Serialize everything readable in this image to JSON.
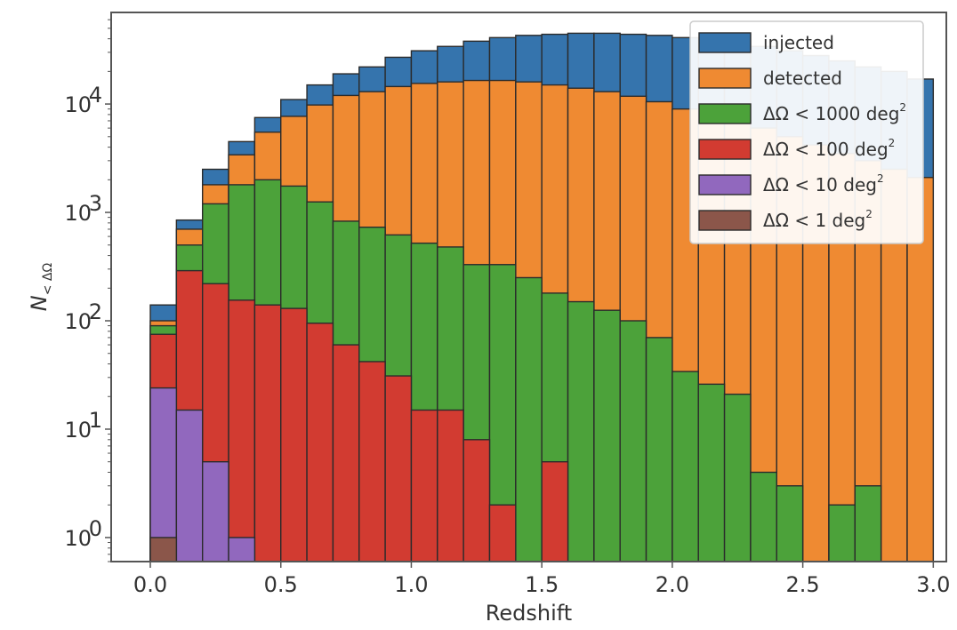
{
  "chart_data": {
    "type": "bar",
    "xlabel": "Redshift",
    "ylabel": "N",
    "ylabel_sub": "< ΔΩ",
    "y_scale": "log",
    "xlim": [
      -0.15,
      3.05
    ],
    "ylim": [
      0.6,
      70000
    ],
    "x_ticks": [
      0.0,
      0.5,
      1.0,
      1.5,
      2.0,
      2.5,
      3.0
    ],
    "x_tick_labels": [
      "0.0",
      "0.5",
      "1.0",
      "1.5",
      "2.0",
      "2.5",
      "3.0"
    ],
    "y_ticks": [
      1,
      10,
      100,
      1000,
      10000
    ],
    "y_tick_labels": [
      {
        "base": "10",
        "exp": "0"
      },
      {
        "base": "10",
        "exp": "1"
      },
      {
        "base": "10",
        "exp": "2"
      },
      {
        "base": "10",
        "exp": "3"
      },
      {
        "base": "10",
        "exp": "4"
      }
    ],
    "grid": false,
    "legend_position": "top-right",
    "bin_edges": [
      0.0,
      0.1,
      0.2,
      0.3,
      0.4,
      0.5,
      0.6,
      0.7,
      0.8,
      0.9,
      1.0,
      1.1,
      1.2,
      1.3,
      1.4,
      1.5,
      1.6,
      1.7,
      1.8,
      1.9,
      2.0,
      2.1,
      2.2,
      2.3,
      2.4,
      2.5,
      2.6,
      2.7,
      2.8,
      2.9,
      3.0
    ],
    "series": [
      {
        "name": "injected",
        "label_main": "injected",
        "label_sup": "",
        "color": "#3574ad",
        "values": [
          140,
          850,
          2500,
          4500,
          7500,
          11000,
          15000,
          19000,
          22000,
          27000,
          31000,
          34000,
          38000,
          41000,
          43000,
          44000,
          45000,
          45000,
          44000,
          43000,
          41000,
          38000,
          36000,
          34000,
          31000,
          28000,
          25000,
          22000,
          20000,
          17000
        ]
      },
      {
        "name": "detected",
        "label_main": "detected",
        "label_sup": "",
        "color": "#ef8a32",
        "values": [
          100,
          700,
          1800,
          3400,
          5500,
          7700,
          9800,
          12000,
          13000,
          14500,
          15500,
          16000,
          16500,
          16500,
          16000,
          15000,
          14000,
          13000,
          11800,
          10500,
          9000,
          8000,
          7000,
          6000,
          5000,
          4200,
          3500,
          3000,
          2500,
          2100
        ]
      },
      {
        "name": "ΔΩ < 1000 deg²",
        "label_main": "ΔΩ < 1000 deg",
        "label_sup": "2",
        "color": "#4ca23a",
        "values": [
          90,
          500,
          1200,
          1800,
          2000,
          1750,
          1250,
          830,
          730,
          620,
          520,
          480,
          330,
          330,
          250,
          180,
          150,
          125,
          100,
          70,
          34,
          26,
          21,
          4,
          3,
          0,
          2,
          3,
          0,
          0
        ]
      },
      {
        "name": "ΔΩ < 100 deg²",
        "label_main": "ΔΩ < 100 deg",
        "label_sup": "2",
        "color": "#d23b31",
        "values": [
          75,
          290,
          220,
          155,
          140,
          130,
          95,
          60,
          42,
          31,
          15,
          15,
          8,
          2,
          0,
          5,
          0,
          0,
          0,
          0,
          0,
          0,
          0,
          0,
          0,
          0,
          0,
          0,
          0,
          0
        ]
      },
      {
        "name": "ΔΩ < 10 deg²",
        "label_main": "ΔΩ < 10 deg",
        "label_sup": "2",
        "color": "#9168be",
        "values": [
          24,
          15,
          5,
          1,
          0,
          0,
          0,
          0,
          0,
          0,
          0,
          0,
          0,
          0,
          0,
          0,
          0,
          0,
          0,
          0,
          0,
          0,
          0,
          0,
          0,
          0,
          0,
          0,
          0,
          0
        ]
      },
      {
        "name": "ΔΩ < 1 deg²",
        "label_main": "ΔΩ < 1 deg",
        "label_sup": "2",
        "color": "#8b564a",
        "values": [
          1,
          0,
          0,
          0,
          0,
          0,
          0,
          0,
          0,
          0,
          0,
          0,
          0,
          0,
          0,
          0,
          0,
          0,
          0,
          0,
          0,
          0,
          0,
          0,
          0,
          0,
          0,
          0,
          0,
          0
        ]
      }
    ]
  }
}
